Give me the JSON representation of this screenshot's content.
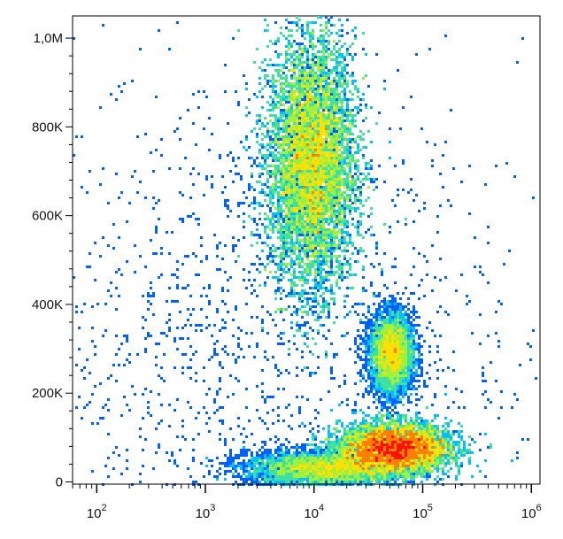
{
  "chart_data": {
    "type": "scatter",
    "title": "",
    "xlabel": "",
    "ylabel": "",
    "x_scale": "log",
    "xlim": [
      60,
      1200000
    ],
    "ylim": [
      -5000,
      1050000
    ],
    "x_ticks": [
      {
        "base": "10",
        "exp": "2",
        "value": 100
      },
      {
        "base": "10",
        "exp": "3",
        "value": 1000
      },
      {
        "base": "10",
        "exp": "4",
        "value": 10000
      },
      {
        "base": "10",
        "exp": "5",
        "value": 100000
      },
      {
        "base": "10",
        "exp": "6",
        "value": 1000000
      }
    ],
    "y_ticks": [
      {
        "label": "0",
        "value": 0
      },
      {
        "label": "200K",
        "value": 200000
      },
      {
        "label": "400K",
        "value": 400000
      },
      {
        "label": "600K",
        "value": 600000
      },
      {
        "label": "800K",
        "value": 800000
      },
      {
        "label": "1,0M",
        "value": 1000000
      }
    ],
    "grid": false,
    "density_colormap": [
      "#0000cc",
      "#0060ff",
      "#00c0ff",
      "#40e0a0",
      "#a0f040",
      "#ffe000",
      "#ff8000",
      "#ff1000"
    ],
    "populations": [
      {
        "x_center": 9500,
        "y_center": 720000,
        "x_spread_decades": 0.2,
        "y_spread": 140000,
        "weight": 0.42
      },
      {
        "x_center": 52000,
        "y_center": 290000,
        "x_spread_decades": 0.1,
        "y_spread": 45000,
        "weight": 0.09
      },
      {
        "x_center": 55000,
        "y_center": 75000,
        "x_spread_decades": 0.25,
        "y_spread": 28000,
        "weight": 0.36
      },
      {
        "x_center": 12000,
        "y_center": 30000,
        "x_spread_decades": 0.35,
        "y_spread": 20000,
        "weight": 0.1
      },
      {
        "x_center": 3000,
        "y_center": 300000,
        "x_spread_decades": 1.2,
        "y_spread": 320000,
        "weight": 0.03
      }
    ]
  }
}
